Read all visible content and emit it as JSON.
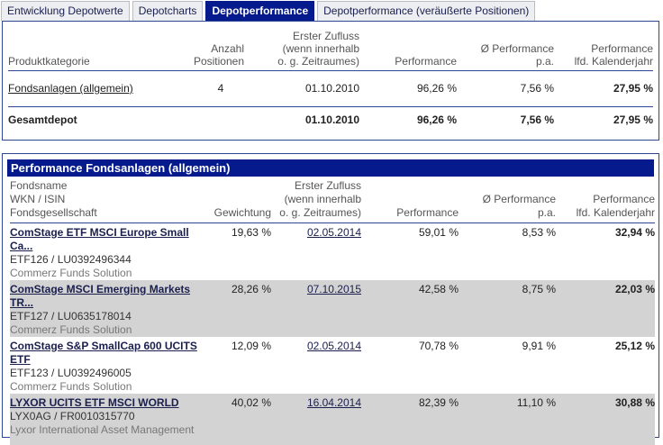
{
  "tabs": [
    {
      "label": "Entwicklung Depotwerte"
    },
    {
      "label": "Depotcharts"
    },
    {
      "label": "Depotperformance"
    },
    {
      "label": "Depotperformance (veräußerte Positionen)"
    }
  ],
  "summary": {
    "headers": {
      "category": "Produktkategorie",
      "count": "Anzahl Positionen",
      "first_inflow": "Erster Zufluss (wenn innerhalb o. g. Zeitraumes)",
      "performance": "Performance",
      "avg_perf": "Ø Performance p.a.",
      "ytd": "Performance lfd. Kalenderjahr"
    },
    "row": {
      "category": "Fondsanlagen (allgemein)",
      "count": "4",
      "first_inflow": "01.10.2010",
      "performance": "96,26 %",
      "avg_perf": "7,56 %",
      "ytd": "27,95 %"
    },
    "total": {
      "category": "Gesamtdepot",
      "first_inflow": "01.10.2010",
      "performance": "96,26 %",
      "avg_perf": "7,56 %",
      "ytd": "27,95 %"
    }
  },
  "detail": {
    "title": "Performance Fondsanlagen (allgemein)",
    "headers": {
      "fund": "Fondsname WKN / ISIN Fondsgesellschaft",
      "weight": "Gewichtung",
      "first_inflow": "Erster Zufluss (wenn innerhalb o. g. Zeitraumes)",
      "performance": "Performance",
      "avg_perf": "Ø Performance p.a.",
      "ytd": "Performance lfd. Kalenderjahr"
    },
    "rows": [
      {
        "name": "ComStage ETF MSCI Europe Small Ca...",
        "wkn": "ETF126 /  LU0392496344",
        "company": "Commerz Funds Solution",
        "weight": "19,63 %",
        "first_inflow": "02.05.2014",
        "performance": "59,01 %",
        "avg_perf": "8,53 %",
        "ytd": "32,94 %"
      },
      {
        "name": "ComStage MSCI Emerging Markets TR...",
        "wkn": "ETF127 /  LU0635178014",
        "company": "Commerz Funds Solution",
        "weight": "28,26 %",
        "first_inflow": "07.10.2015",
        "performance": "42,58 %",
        "avg_perf": "8,75 %",
        "ytd": "22,03 %"
      },
      {
        "name": "ComStage S&P SmallCap 600 UCITS ETF",
        "wkn": "ETF123 /  LU0392496005",
        "company": "Commerz Funds Solution",
        "weight": "12,09 %",
        "first_inflow": "02.05.2014",
        "performance": "70,78 %",
        "avg_perf": "9,91 %",
        "ytd": "25,12 %"
      },
      {
        "name": "LYXOR UCITS ETF MSCI WORLD",
        "wkn": "LYX0AG /  FR0010315770",
        "company": "Lyxor International Asset Management",
        "weight": "40,02 %",
        "first_inflow": "16.04.2014",
        "performance": "82,39 %",
        "avg_perf": "11,10 %",
        "ytd": "30,88 %"
      }
    ]
  },
  "colors": {
    "accent": "#051a8c",
    "border": "#2f4792",
    "shade": "#d3d3d3"
  }
}
